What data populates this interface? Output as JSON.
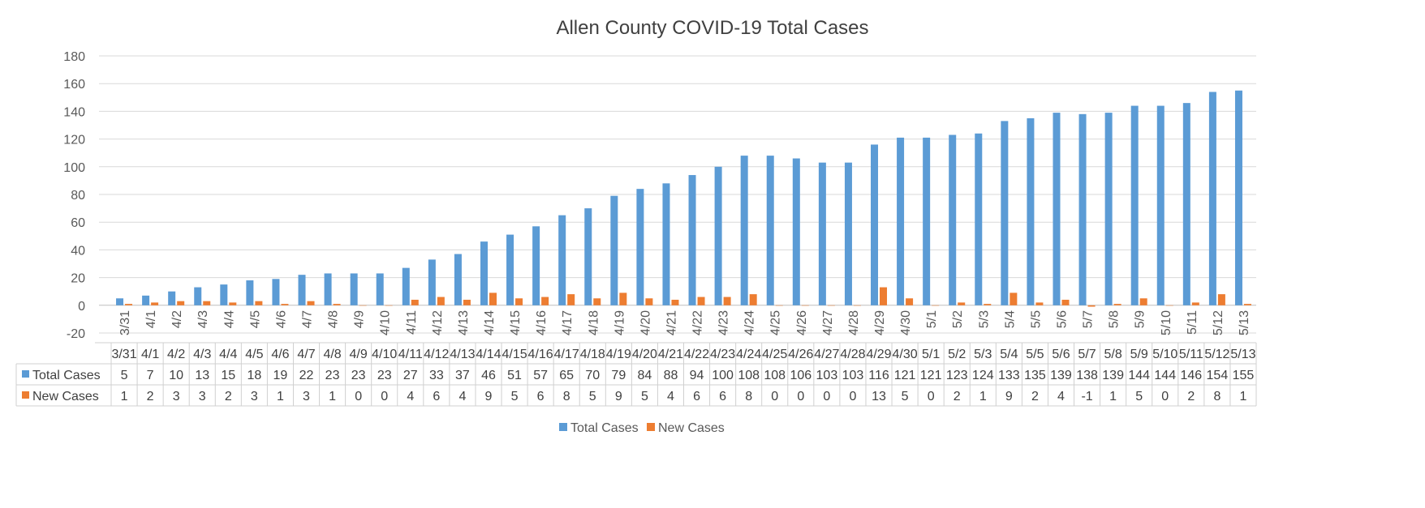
{
  "chart_data": {
    "type": "bar",
    "title": "Allen County COVID-19 Total Cases",
    "xlabel": "",
    "ylabel": "",
    "ylim": [
      -20,
      180
    ],
    "yticks": [
      -20,
      0,
      20,
      40,
      60,
      80,
      100,
      120,
      140,
      160,
      180
    ],
    "grid": true,
    "legend": "bottom",
    "data_table": true,
    "categories": [
      "3/31",
      "4/1",
      "4/2",
      "4/3",
      "4/4",
      "4/5",
      "4/6",
      "4/7",
      "4/8",
      "4/9",
      "4/10",
      "4/11",
      "4/12",
      "4/13",
      "4/14",
      "4/15",
      "4/16",
      "4/17",
      "4/18",
      "4/19",
      "4/20",
      "4/21",
      "4/22",
      "4/23",
      "4/24",
      "4/25",
      "4/26",
      "4/27",
      "4/28",
      "4/29",
      "4/30",
      "5/1",
      "5/2",
      "5/3",
      "5/4",
      "5/5",
      "5/6",
      "5/7",
      "5/8",
      "5/9",
      "5/10",
      "5/11",
      "5/12",
      "5/13"
    ],
    "series": [
      {
        "name": "Total Cases",
        "color": "#5B9BD5",
        "values": [
          5,
          7,
          10,
          13,
          15,
          18,
          19,
          22,
          23,
          23,
          23,
          27,
          33,
          37,
          46,
          51,
          57,
          65,
          70,
          79,
          84,
          88,
          94,
          100,
          108,
          108,
          106,
          103,
          103,
          116,
          121,
          121,
          123,
          124,
          133,
          135,
          139,
          138,
          139,
          144,
          144,
          146,
          154,
          155
        ]
      },
      {
        "name": "New Cases",
        "color": "#ED7D31",
        "values": [
          1,
          2,
          3,
          3,
          2,
          3,
          1,
          3,
          1,
          0,
          0,
          4,
          6,
          4,
          9,
          5,
          6,
          8,
          5,
          9,
          5,
          4,
          6,
          6,
          8,
          0,
          0,
          0,
          0,
          13,
          5,
          0,
          2,
          1,
          9,
          2,
          4,
          -1,
          1,
          5,
          0,
          2,
          8,
          1
        ]
      }
    ]
  }
}
